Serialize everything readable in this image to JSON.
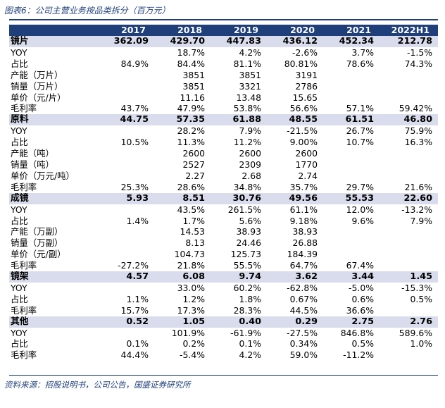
{
  "caption": "图表6：公司主营业务按品类拆分（百万元）",
  "source": "资料来源：招股说明书，公司公告，国盛证券研究所",
  "headers": [
    "",
    "2017",
    "2018",
    "2019",
    "2020",
    "2021",
    "2022H1"
  ],
  "sections": [
    {
      "label": "镜片",
      "values": [
        "362.09",
        "429.70",
        "447.83",
        "436.12",
        "452.34",
        "212.78"
      ],
      "rows": [
        {
          "label": "YOY",
          "values": [
            "",
            "18.7%",
            "4.2%",
            "-2.6%",
            "3.7%",
            "-1.5%"
          ]
        },
        {
          "label": "占比",
          "values": [
            "84.9%",
            "84.4%",
            "81.1%",
            "80.81%",
            "78.6%",
            "74.3%"
          ]
        },
        {
          "label": "产能（万片）",
          "values": [
            "",
            "3851",
            "3851",
            "3191",
            "",
            ""
          ]
        },
        {
          "label": "销量（万片）",
          "values": [
            "",
            "3851",
            "3321",
            "2786",
            "",
            ""
          ]
        },
        {
          "label": "单价（元/片）",
          "values": [
            "",
            "11.16",
            "13.48",
            "15.65",
            "",
            ""
          ]
        },
        {
          "label": "毛利率",
          "values": [
            "43.7%",
            "47.9%",
            "53.8%",
            "56.6%",
            "57.1%",
            "59.42%"
          ]
        }
      ]
    },
    {
      "label": "原料",
      "values": [
        "44.75",
        "57.35",
        "61.88",
        "48.55",
        "61.51",
        "46.80"
      ],
      "rows": [
        {
          "label": "YOY",
          "values": [
            "",
            "28.2%",
            "7.9%",
            "-21.5%",
            "26.7%",
            "75.9%"
          ]
        },
        {
          "label": "占比",
          "values": [
            "10.5%",
            "11.3%",
            "11.2%",
            "9.00%",
            "10.7%",
            "16.3%"
          ]
        },
        {
          "label": "产能（吨）",
          "values": [
            "",
            "2600",
            "2600",
            "2600",
            "",
            ""
          ]
        },
        {
          "label": "销量（吨）",
          "values": [
            "",
            "2527",
            "2309",
            "1770",
            "",
            ""
          ]
        },
        {
          "label": "单价（万元/吨）",
          "values": [
            "",
            "2.27",
            "2.68",
            "2.74",
            "",
            ""
          ]
        },
        {
          "label": "毛利率",
          "values": [
            "25.3%",
            "28.6%",
            "34.8%",
            "35.7%",
            "29.7%",
            "21.6%"
          ]
        }
      ]
    },
    {
      "label": "成镜",
      "values": [
        "5.93",
        "8.51",
        "30.76",
        "49.56",
        "55.53",
        "22.60"
      ],
      "rows": [
        {
          "label": "YOY",
          "values": [
            "",
            "43.5%",
            "261.5%",
            "61.1%",
            "12.0%",
            "-13.2%"
          ]
        },
        {
          "label": "占比",
          "values": [
            "1.4%",
            "1.7%",
            "5.6%",
            "9.18%",
            "9.6%",
            "7.9%"
          ]
        },
        {
          "label": "产能（万副）",
          "values": [
            "",
            "14.53",
            "38.93",
            "38.93",
            "",
            ""
          ]
        },
        {
          "label": "销量（万副）",
          "values": [
            "",
            "8.13",
            "24.46",
            "26.88",
            "",
            ""
          ]
        },
        {
          "label": "单价（元/副）",
          "values": [
            "",
            "104.73",
            "125.73",
            "184.39",
            "",
            ""
          ]
        },
        {
          "label": "毛利率",
          "values": [
            "-27.2%",
            "21.8%",
            "55.5%",
            "64.7%",
            "67.4%",
            ""
          ]
        }
      ]
    },
    {
      "label": "镜架",
      "values": [
        "4.57",
        "6.08",
        "9.74",
        "3.62",
        "3.44",
        "1.45"
      ],
      "rows": [
        {
          "label": "YOY",
          "values": [
            "",
            "33.0%",
            "60.2%",
            "-62.8%",
            "-5.0%",
            "-15.3%"
          ]
        },
        {
          "label": "占比",
          "values": [
            "1.1%",
            "1.2%",
            "1.8%",
            "0.67%",
            "0.6%",
            "0.5%"
          ]
        },
        {
          "label": "毛利率",
          "values": [
            "15.7%",
            "17.3%",
            "28.3%",
            "44.5%",
            "36.6%",
            ""
          ]
        }
      ]
    },
    {
      "label": "其他",
      "values": [
        "0.52",
        "1.05",
        "0.40",
        "0.29",
        "2.75",
        "2.76"
      ],
      "rows": [
        {
          "label": "YOY",
          "values": [
            "",
            "101.9%",
            "-61.9%",
            "-27.5%",
            "846.8%",
            "589.6%"
          ]
        },
        {
          "label": "占比",
          "values": [
            "0.1%",
            "0.2%",
            "0.1%",
            "0.34%",
            "0.5%",
            "1.0%"
          ]
        },
        {
          "label": "毛利率",
          "values": [
            "44.4%",
            "-5.4%",
            "4.2%",
            "59.0%",
            "-11.2%",
            ""
          ]
        }
      ]
    }
  ]
}
